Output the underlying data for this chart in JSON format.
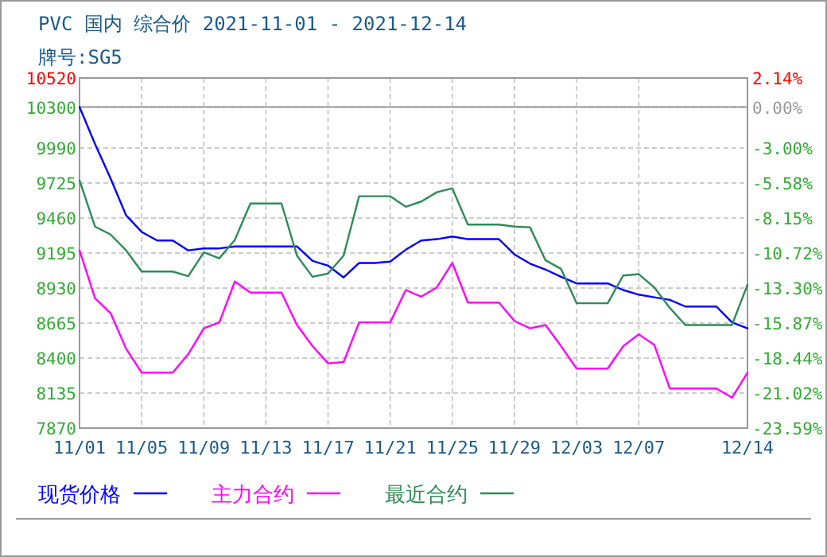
{
  "chart_data": {
    "type": "line",
    "title": "PVC 国内 综合价 2021-11-01 - 2021-12-14",
    "subtitle": "牌号:SG5",
    "x": [
      "2021-11-01",
      "2021-11-02",
      "2021-11-03",
      "2021-11-04",
      "2021-11-05",
      "2021-11-06",
      "2021-11-07",
      "2021-11-08",
      "2021-11-09",
      "2021-11-10",
      "2021-11-11",
      "2021-11-12",
      "2021-11-13",
      "2021-11-14",
      "2021-11-15",
      "2021-11-16",
      "2021-11-17",
      "2021-11-18",
      "2021-11-19",
      "2021-11-20",
      "2021-11-21",
      "2021-11-22",
      "2021-11-23",
      "2021-11-24",
      "2021-11-25",
      "2021-11-26",
      "2021-11-27",
      "2021-11-28",
      "2021-11-29",
      "2021-11-30",
      "2021-12-01",
      "2021-12-02",
      "2021-12-03",
      "2021-12-04",
      "2021-12-05",
      "2021-12-06",
      "2021-12-07",
      "2021-12-08",
      "2021-12-09",
      "2021-12-10",
      "2021-12-11",
      "2021-12-12",
      "2021-12-13",
      "2021-12-14"
    ],
    "series": [
      {
        "name": "现货价格",
        "color": "#0000ff",
        "values": [
          10300,
          10020,
          9760,
          9480,
          9355,
          9290,
          9290,
          9215,
          9230,
          9230,
          9245,
          9245,
          9245,
          9245,
          9245,
          9135,
          9100,
          9010,
          9120,
          9120,
          9130,
          9220,
          9290,
          9300,
          9320,
          9300,
          9300,
          9300,
          9185,
          9115,
          9070,
          9015,
          8965,
          8965,
          8965,
          8915,
          8880,
          8860,
          8840,
          8790,
          8790,
          8790,
          8670,
          8625
        ]
      },
      {
        "name": "主力合约",
        "color": "#ff00ff",
        "values": [
          9215,
          8853,
          8740,
          8470,
          8290,
          8290,
          8290,
          8430,
          8625,
          8670,
          8980,
          8895,
          8895,
          8895,
          8650,
          8490,
          8360,
          8370,
          8670,
          8670,
          8670,
          8915,
          8865,
          8935,
          9120,
          8820,
          8820,
          8820,
          8680,
          8625,
          8650,
          8490,
          8320,
          8320,
          8320,
          8490,
          8580,
          8500,
          8170,
          8170,
          8170,
          8170,
          8100,
          8290
        ]
      },
      {
        "name": "最近合约",
        "color": "#2e8b57",
        "values": [
          9745,
          9395,
          9335,
          9215,
          9055,
          9055,
          9055,
          9020,
          9200,
          9155,
          9295,
          9570,
          9570,
          9570,
          9175,
          9015,
          9040,
          9175,
          9625,
          9625,
          9625,
          9545,
          9585,
          9655,
          9685,
          9410,
          9410,
          9410,
          9395,
          9390,
          9140,
          9075,
          8815,
          8815,
          8815,
          9025,
          9035,
          8935,
          8780,
          8650,
          8650,
          8650,
          8650,
          8955
        ]
      }
    ],
    "xlim": [
      "2021-11-01",
      "2021-12-14"
    ],
    "xticks": [
      {
        "value": "2021-11-01",
        "label": "11/01"
      },
      {
        "value": "2021-11-05",
        "label": "11/05"
      },
      {
        "value": "2021-11-09",
        "label": "11/09"
      },
      {
        "value": "2021-11-13",
        "label": "11/13"
      },
      {
        "value": "2021-11-17",
        "label": "11/17"
      },
      {
        "value": "2021-11-21",
        "label": "11/21"
      },
      {
        "value": "2021-11-25",
        "label": "11/25"
      },
      {
        "value": "2021-11-29",
        "label": "11/29"
      },
      {
        "value": "2021-12-03",
        "label": "12/03"
      },
      {
        "value": "2021-12-07",
        "label": "12/07"
      },
      {
        "value": "2021-12-14",
        "label": "12/14"
      }
    ],
    "ylim": [
      7870,
      10520
    ],
    "yticks": [
      7870,
      8135,
      8400,
      8665,
      8930,
      9195,
      9460,
      9725,
      9990,
      10300,
      10520
    ],
    "y2lim": [
      -23.59,
      2.14
    ],
    "y2ticks": [
      {
        "value": -23.59,
        "label": "-23.59%"
      },
      {
        "value": -21.02,
        "label": "-21.02%"
      },
      {
        "value": -18.44,
        "label": "-18.44%"
      },
      {
        "value": -15.87,
        "label": "-15.87%"
      },
      {
        "value": -13.3,
        "label": "-13.30%"
      },
      {
        "value": -10.72,
        "label": "-10.72%"
      },
      {
        "value": -8.15,
        "label": "-8.15%"
      },
      {
        "value": -5.58,
        "label": "-5.58%"
      },
      {
        "value": -3.0,
        "label": "-3.00%"
      },
      {
        "value": 0,
        "label": "0.00%"
      },
      {
        "value": 2.14,
        "label": "2.14%"
      }
    ],
    "grid": true,
    "legend": "bottom",
    "marker": "none",
    "line_style": "solid"
  }
}
